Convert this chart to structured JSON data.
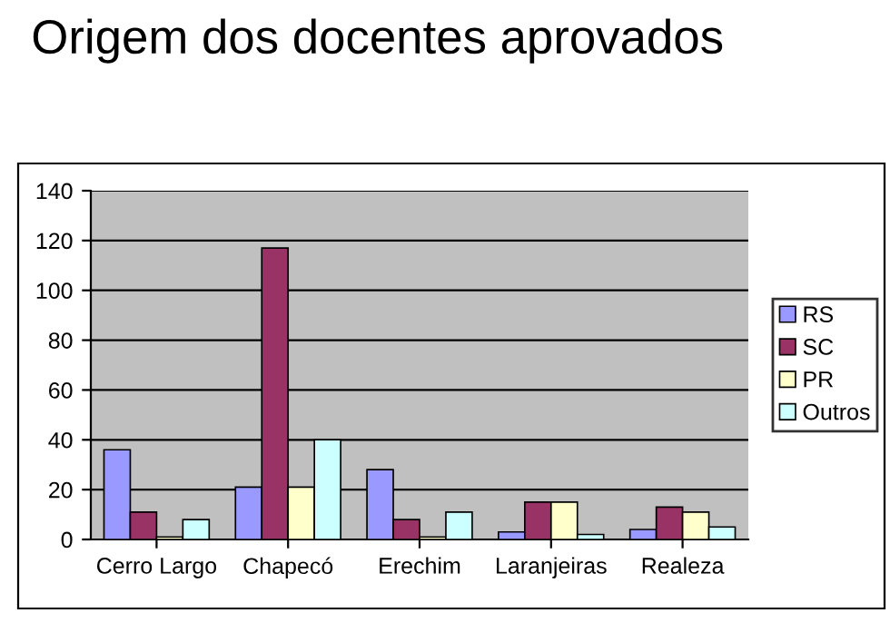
{
  "chart_data": {
    "type": "bar",
    "title": "Origem dos docentes aprovados",
    "categories": [
      "Cerro Largo",
      "Chapecó",
      "Erechim",
      "Laranjeiras",
      "Realeza"
    ],
    "series": [
      {
        "name": "RS",
        "color": "#9999ff",
        "values": [
          36,
          21,
          28,
          3,
          4
        ]
      },
      {
        "name": "SC",
        "color": "#993366",
        "values": [
          11,
          117,
          8,
          15,
          13
        ]
      },
      {
        "name": "PR",
        "color": "#ffffcc",
        "values": [
          1,
          21,
          1,
          15,
          11
        ]
      },
      {
        "name": "Outros",
        "color": "#ccffff",
        "values": [
          8,
          40,
          11,
          2,
          5
        ]
      }
    ],
    "ylim": [
      0,
      140
    ],
    "yticks": [
      0,
      20,
      40,
      60,
      80,
      100,
      120,
      140
    ],
    "grid": "y",
    "legend": "right"
  }
}
